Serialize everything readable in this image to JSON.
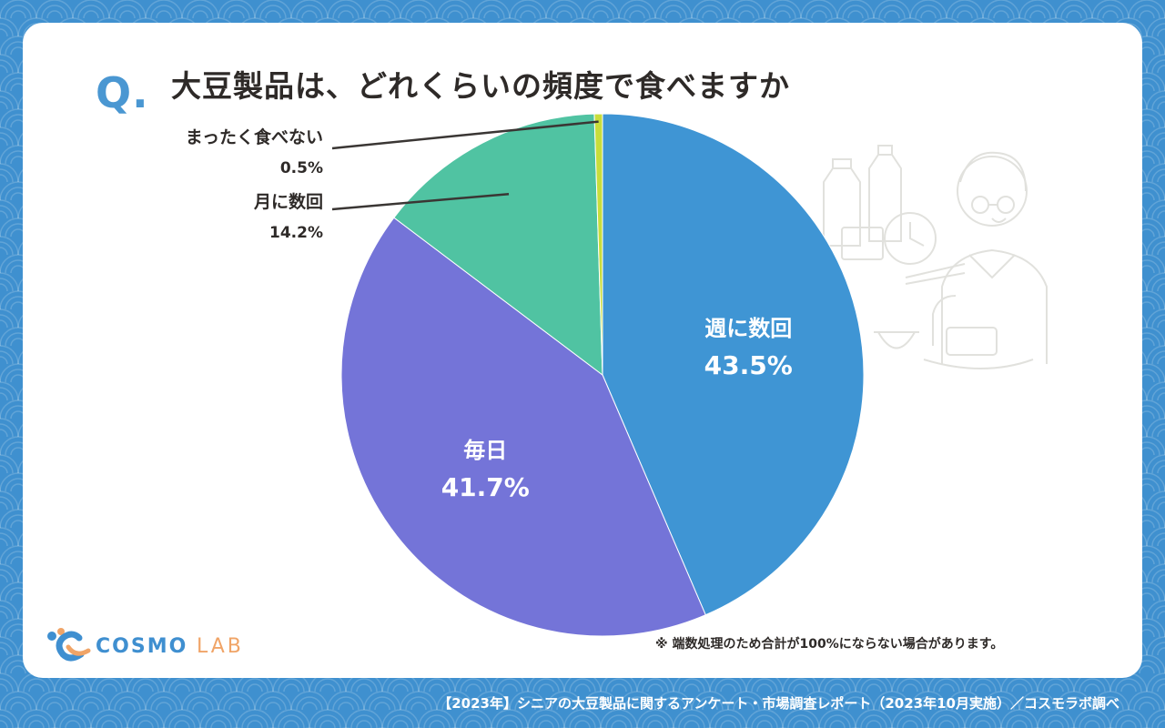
{
  "question": {
    "mark": "Q",
    "dot": ".",
    "title": "大豆製品は、どれくらいの頻度で食べますか"
  },
  "chart_data": {
    "type": "pie",
    "categories": [
      "週に数回",
      "毎日",
      "月に数回",
      "まったく食べない"
    ],
    "values": [
      43.5,
      41.7,
      14.2,
      0.5
    ],
    "value_labels": [
      "43.5%",
      "41.7%",
      "14.2%",
      "0.5%"
    ],
    "colors": [
      "#3f95d4",
      "#7474d8",
      "#50c3a2",
      "#c8dd3c"
    ],
    "start": "12 o'clock, clockwise",
    "label_placement": [
      "inside",
      "inside",
      "outside-left",
      "outside-left"
    ]
  },
  "footnote": "※ 端数処理のため合計が100%にならない場合があります。",
  "source": "【2023年】シニアの大豆製品に関するアンケート・市場調査レポート（2023年10月実施）／コスモラボ調べ",
  "logo": {
    "main": "COSMO",
    "sub": "LAB",
    "colors": [
      "#3f8fd0",
      "#f0a467"
    ]
  },
  "colors": {
    "background": "#3f90cf",
    "card": "#ffffff",
    "text": "#2e2a28",
    "accent": "#4a97d2"
  }
}
